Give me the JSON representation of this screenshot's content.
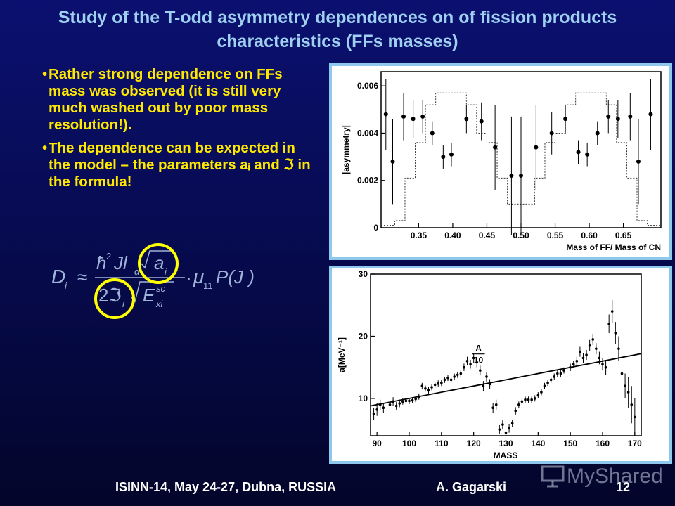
{
  "slide": {
    "title": "Study of the  T-odd asymmetry dependences on of fission products characteristics (FFs masses)",
    "bullets": [
      "Rather strong dependence on FFs mass was observed (it is still very much washed out by poor mass resolution!).",
      "The dependence can be expected in the model – the parameters aᵢ and ℑ in the formula!"
    ],
    "formula": {
      "lhs": "D",
      "lhs_sub": "i",
      "approx": "≈",
      "num_hbar": "ħ",
      "num_sup": "2",
      "num_J": "Jl",
      "num_sub": "α",
      "num_root": "a",
      "num_root_sub": "i",
      "den_2": "2ℑ",
      "den_sub": "i",
      "den_root": "E",
      "den_root_sup": "sc",
      "den_root_sub": "xi",
      "dot": "·",
      "mu": "μ",
      "mu_sub": "11",
      "tail": "P(J )"
    },
    "highlight_color": "#ffff00",
    "footer": {
      "conference": "ISINN-14,  May 24-27, Dubna, RUSSIA",
      "author": "A. Gagarski",
      "page": "12"
    },
    "watermark": "MyShared"
  },
  "chart_data": [
    {
      "type": "scatter",
      "xlabel": "Mass of FF/ Mass of CN",
      "ylabel": "|asymmetry|",
      "xlim": [
        0.295,
        0.705
      ],
      "ylim": [
        0,
        0.0066
      ],
      "xticks": [
        "0.35",
        "0.40",
        "0.45",
        "0.50",
        "0.55",
        "0.60",
        "0.65"
      ],
      "yticks": [
        "0",
        "0.002",
        "0.004",
        "0.006"
      ],
      "points": [
        {
          "x": 0.302,
          "y": 0.0048,
          "err": 0.0015
        },
        {
          "x": 0.312,
          "y": 0.0028,
          "err": 0.0018
        },
        {
          "x": 0.328,
          "y": 0.0047,
          "err": 0.001
        },
        {
          "x": 0.342,
          "y": 0.0046,
          "err": 0.0008
        },
        {
          "x": 0.356,
          "y": 0.0047,
          "err": 0.0007
        },
        {
          "x": 0.37,
          "y": 0.004,
          "err": 0.0005
        },
        {
          "x": 0.386,
          "y": 0.003,
          "err": 0.0005
        },
        {
          "x": 0.398,
          "y": 0.0031,
          "err": 0.0005
        },
        {
          "x": 0.42,
          "y": 0.0046,
          "err": 0.0006
        },
        {
          "x": 0.442,
          "y": 0.0045,
          "err": 0.0008
        },
        {
          "x": 0.462,
          "y": 0.0034,
          "err": 0.0018
        },
        {
          "x": 0.486,
          "y": 0.0022,
          "err": 0.0025
        },
        {
          "x": 0.5,
          "y": 0.0022,
          "err": 0.0025
        },
        {
          "x": 0.522,
          "y": 0.0034,
          "err": 0.0018
        },
        {
          "x": 0.545,
          "y": 0.004,
          "err": 0.0009
        },
        {
          "x": 0.565,
          "y": 0.0046,
          "err": 0.0006
        },
        {
          "x": 0.584,
          "y": 0.0032,
          "err": 0.0005
        },
        {
          "x": 0.597,
          "y": 0.0031,
          "err": 0.0005
        },
        {
          "x": 0.612,
          "y": 0.004,
          "err": 0.0005
        },
        {
          "x": 0.628,
          "y": 0.0047,
          "err": 0.0007
        },
        {
          "x": 0.642,
          "y": 0.0046,
          "err": 0.0008
        },
        {
          "x": 0.66,
          "y": 0.0047,
          "err": 0.001
        },
        {
          "x": 0.672,
          "y": 0.0028,
          "err": 0.0018
        },
        {
          "x": 0.69,
          "y": 0.0048,
          "err": 0.0015
        }
      ],
      "histogram": {
        "edges": [
          0.295,
          0.315,
          0.33,
          0.345,
          0.36,
          0.375,
          0.39,
          0.405,
          0.42,
          0.435,
          0.45,
          0.465,
          0.48,
          0.5,
          0.52,
          0.535,
          0.55,
          0.565,
          0.58,
          0.595,
          0.61,
          0.625,
          0.64,
          0.655,
          0.67,
          0.685,
          0.705
        ],
        "values": [
          0.0001,
          0.0003,
          0.0021,
          0.0036,
          0.0052,
          0.0057,
          0.0057,
          0.0057,
          0.0052,
          0.004,
          0.0036,
          0.0021,
          0.001,
          0.001,
          0.0021,
          0.0036,
          0.004,
          0.0052,
          0.0057,
          0.0057,
          0.0057,
          0.0052,
          0.0036,
          0.0021,
          0.0003,
          0.0001
        ]
      }
    },
    {
      "type": "scatter",
      "xlabel": "MASS",
      "ylabel": "a[MeV⁻¹]",
      "xlim": [
        88,
        172
      ],
      "ylim": [
        4,
        30
      ],
      "xticks": [
        "90",
        "100",
        "110",
        "120",
        "130",
        "140",
        "150",
        "160",
        "170"
      ],
      "yticks": [
        "10",
        "20",
        "30"
      ],
      "line_label_top": "A",
      "line_label_bottom": "10",
      "line": {
        "x": [
          88,
          172
        ],
        "y": [
          8.8,
          17.2
        ]
      },
      "points": [
        {
          "x": 89,
          "y": 7.5,
          "err": 1.0
        },
        {
          "x": 90,
          "y": 8.2,
          "err": 1.0
        },
        {
          "x": 91,
          "y": 9.0,
          "err": 0.8
        },
        {
          "x": 92,
          "y": 8.5,
          "err": 0.8
        },
        {
          "x": 94,
          "y": 9.0,
          "err": 0.7
        },
        {
          "x": 95,
          "y": 9.5,
          "err": 0.7
        },
        {
          "x": 96,
          "y": 8.8,
          "err": 0.6
        },
        {
          "x": 97,
          "y": 9.2,
          "err": 0.6
        },
        {
          "x": 98,
          "y": 9.5,
          "err": 0.5
        },
        {
          "x": 99,
          "y": 9.6,
          "err": 0.5
        },
        {
          "x": 100,
          "y": 9.6,
          "err": 0.5
        },
        {
          "x": 101,
          "y": 9.7,
          "err": 0.5
        },
        {
          "x": 102,
          "y": 9.9,
          "err": 0.5
        },
        {
          "x": 103,
          "y": 10.3,
          "err": 0.5
        },
        {
          "x": 104,
          "y": 12.0,
          "err": 0.5
        },
        {
          "x": 105,
          "y": 11.6,
          "err": 0.5
        },
        {
          "x": 106,
          "y": 11.3,
          "err": 0.5
        },
        {
          "x": 107,
          "y": 11.8,
          "err": 0.5
        },
        {
          "x": 108,
          "y": 12.2,
          "err": 0.5
        },
        {
          "x": 109,
          "y": 12.4,
          "err": 0.5
        },
        {
          "x": 110,
          "y": 12.5,
          "err": 0.5
        },
        {
          "x": 111,
          "y": 13.0,
          "err": 0.5
        },
        {
          "x": 112,
          "y": 13.3,
          "err": 0.5
        },
        {
          "x": 113,
          "y": 13.0,
          "err": 0.5
        },
        {
          "x": 114,
          "y": 13.5,
          "err": 0.5
        },
        {
          "x": 115,
          "y": 13.8,
          "err": 0.5
        },
        {
          "x": 116,
          "y": 14.0,
          "err": 0.6
        },
        {
          "x": 117,
          "y": 15.0,
          "err": 0.6
        },
        {
          "x": 118,
          "y": 16.0,
          "err": 0.7
        },
        {
          "x": 119,
          "y": 15.5,
          "err": 0.7
        },
        {
          "x": 120,
          "y": 16.5,
          "err": 0.8
        },
        {
          "x": 121,
          "y": 15.8,
          "err": 0.8
        },
        {
          "x": 122,
          "y": 14.5,
          "err": 0.8
        },
        {
          "x": 123,
          "y": 12.0,
          "err": 0.8
        },
        {
          "x": 124,
          "y": 13.5,
          "err": 0.8
        },
        {
          "x": 125,
          "y": 12.3,
          "err": 0.8
        },
        {
          "x": 126,
          "y": 8.5,
          "err": 0.8
        },
        {
          "x": 127,
          "y": 9.0,
          "err": 0.8
        },
        {
          "x": 128,
          "y": 5.0,
          "err": 0.7
        },
        {
          "x": 129,
          "y": 5.8,
          "err": 0.7
        },
        {
          "x": 130,
          "y": 4.5,
          "err": 0.7
        },
        {
          "x": 131,
          "y": 5.2,
          "err": 0.7
        },
        {
          "x": 132,
          "y": 6.0,
          "err": 0.6
        },
        {
          "x": 133,
          "y": 8.0,
          "err": 0.6
        },
        {
          "x": 134,
          "y": 9.0,
          "err": 0.5
        },
        {
          "x": 135,
          "y": 9.5,
          "err": 0.5
        },
        {
          "x": 136,
          "y": 9.8,
          "err": 0.5
        },
        {
          "x": 137,
          "y": 9.8,
          "err": 0.5
        },
        {
          "x": 138,
          "y": 9.8,
          "err": 0.5
        },
        {
          "x": 139,
          "y": 10.0,
          "err": 0.5
        },
        {
          "x": 140,
          "y": 10.5,
          "err": 0.5
        },
        {
          "x": 141,
          "y": 11.0,
          "err": 0.5
        },
        {
          "x": 142,
          "y": 12.0,
          "err": 0.5
        },
        {
          "x": 143,
          "y": 12.5,
          "err": 0.5
        },
        {
          "x": 144,
          "y": 13.0,
          "err": 0.5
        },
        {
          "x": 145,
          "y": 13.5,
          "err": 0.5
        },
        {
          "x": 146,
          "y": 14.0,
          "err": 0.5
        },
        {
          "x": 147,
          "y": 14.0,
          "err": 0.5
        },
        {
          "x": 148,
          "y": 14.5,
          "err": 0.5
        },
        {
          "x": 150,
          "y": 15.0,
          "err": 0.6
        },
        {
          "x": 151,
          "y": 15.5,
          "err": 0.6
        },
        {
          "x": 152,
          "y": 16.0,
          "err": 0.7
        },
        {
          "x": 153,
          "y": 17.5,
          "err": 0.8
        },
        {
          "x": 154,
          "y": 16.5,
          "err": 0.8
        },
        {
          "x": 155,
          "y": 17.0,
          "err": 0.8
        },
        {
          "x": 156,
          "y": 18.5,
          "err": 0.9
        },
        {
          "x": 157,
          "y": 19.5,
          "err": 0.9
        },
        {
          "x": 158,
          "y": 18.0,
          "err": 0.9
        },
        {
          "x": 159,
          "y": 16.5,
          "err": 1.0
        },
        {
          "x": 160,
          "y": 15.5,
          "err": 1.0
        },
        {
          "x": 161,
          "y": 15.0,
          "err": 1.2
        },
        {
          "x": 162,
          "y": 22.0,
          "err": 1.5
        },
        {
          "x": 163,
          "y": 24.0,
          "err": 1.8
        },
        {
          "x": 164,
          "y": 20.5,
          "err": 1.8
        },
        {
          "x": 165,
          "y": 18.0,
          "err": 2.0
        },
        {
          "x": 166,
          "y": 14.0,
          "err": 2.0
        },
        {
          "x": 167,
          "y": 12.0,
          "err": 2.0
        },
        {
          "x": 168,
          "y": 11.0,
          "err": 2.5
        },
        {
          "x": 169,
          "y": 9.0,
          "err": 3.0
        },
        {
          "x": 170,
          "y": 7.0,
          "err": 3.0
        }
      ]
    }
  ]
}
